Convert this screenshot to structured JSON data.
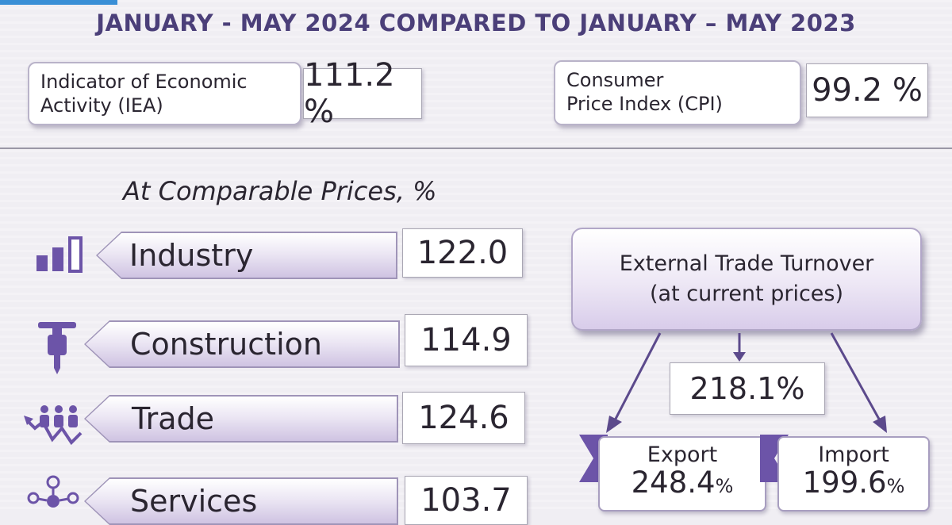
{
  "header": {
    "title": "JANUARY - MAY 2024 COMPARED TO JANUARY – MAY 2023"
  },
  "indicators": {
    "iea": {
      "label_line1": "Indicator of Economic",
      "label_line2": "Activity (IEA)",
      "value": "111.2 %"
    },
    "cpi": {
      "label_line1": "Consumer",
      "label_line2": "Price  Index (CPI)",
      "value": "99.2 %"
    }
  },
  "subtitle": "At Comparable Prices, %",
  "sectors": [
    {
      "label": "Industry",
      "value": "122.0",
      "icon": "bar-chart-icon"
    },
    {
      "label": "Construction",
      "value": "114.9",
      "icon": "jackhammer-icon"
    },
    {
      "label": "Trade",
      "value": "124.6",
      "icon": "people-trend-icon"
    },
    {
      "label": "Services",
      "value": "103.7",
      "icon": "network-icon"
    }
  ],
  "external_trade": {
    "title_line1": "External Trade Turnover",
    "title_line2": "(at current prices)",
    "total": "218.1%",
    "export": {
      "label": "Export",
      "value": "248.4",
      "unit": "%"
    },
    "import": {
      "label": "Import",
      "value": "199.6",
      "unit": "%"
    }
  },
  "colors": {
    "title": "#4b3f79",
    "accent": "#6c54a8",
    "label_fill": "#d8ccea"
  }
}
